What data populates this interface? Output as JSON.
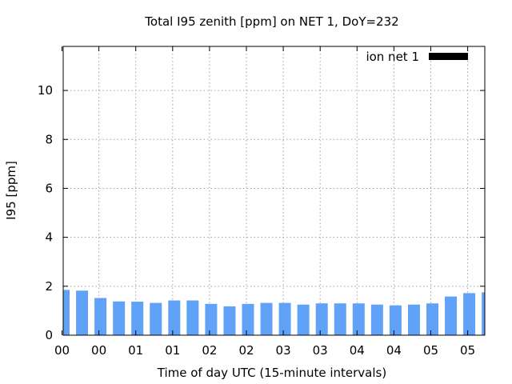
{
  "chart_data": {
    "type": "bar",
    "title": "Total I95 zenith [ppm] on NET 1, DoY=232",
    "xlabel": "Time of day UTC (15-minute intervals)",
    "ylabel": "I95 [ppm]",
    "ylim": [
      0,
      11.8
    ],
    "yticks": [
      0,
      2,
      4,
      6,
      8,
      10
    ],
    "xtick_labels": [
      "00",
      "00",
      "01",
      "01",
      "02",
      "02",
      "03",
      "03",
      "04",
      "04",
      "05",
      "05"
    ],
    "grid": true,
    "legend_position": "top-right",
    "series": [
      {
        "name": "ion net 1",
        "color": "#5fa2f7",
        "legend_color": "#000000",
        "values": [
          1.85,
          1.82,
          1.52,
          1.38,
          1.37,
          1.32,
          1.42,
          1.42,
          1.28,
          1.18,
          1.28,
          1.32,
          1.32,
          1.25,
          1.3,
          1.3,
          1.3,
          1.25,
          1.22,
          1.25,
          1.3,
          1.58,
          1.72,
          1.75
        ]
      }
    ]
  }
}
